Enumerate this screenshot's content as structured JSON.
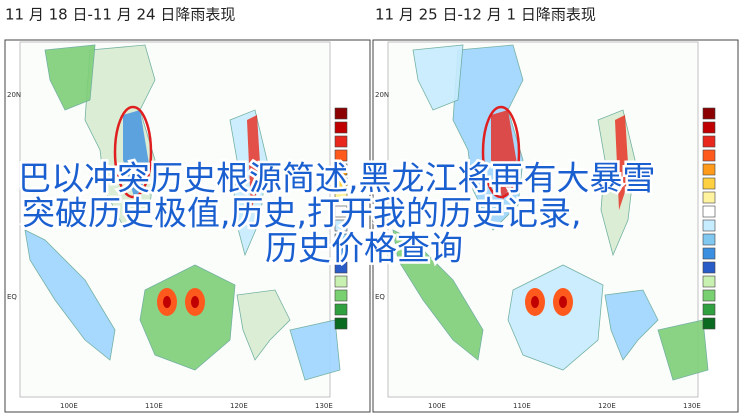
{
  "panels": [
    {
      "title": "11 月 18 日-11 月 24 日降雨表现",
      "lat_labels": [
        "20N",
        "EQ"
      ],
      "lon_labels": [
        "100E",
        "110E",
        "120E",
        "130E"
      ]
    },
    {
      "title": "11 月 25 日-12 月 1 日降雨表现",
      "lat_labels": [
        "20N",
        "EQ"
      ],
      "lon_labels": [
        "100E",
        "110E",
        "120E",
        "130E"
      ]
    }
  ],
  "overlay": {
    "lines": [
      "巴以冲突历史根源简述,黑龙江将再有大暴雪",
      "突破历史极值,历史,打开我的历史记录,",
      "历史价格查询"
    ]
  }
}
